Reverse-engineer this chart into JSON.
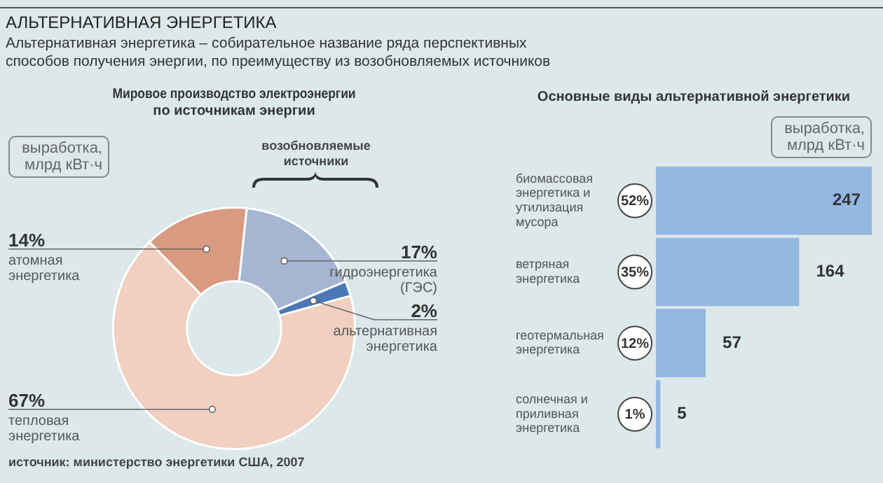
{
  "chart_data": [
    {
      "type": "other",
      "title": "АЛЬТЕРНАТИВНАЯ ЭНЕРГЕТИКА",
      "subtitle": "Альтернативная энергетика – собирательное название ряда перспективных способов получения энергии, по преимуществу из возобновляемых источников"
    },
    {
      "type": "donut",
      "title": "Мировое производство электроэнергии по источникам энергии",
      "categories": [
        "гидроэнергетика (ГЭС)",
        "альтернативная энергетика",
        "тепловая энергетика",
        "атомная энергетика"
      ],
      "values": [
        17,
        2,
        67,
        14
      ],
      "colors": [
        "#a5b5d2",
        "#4a78b8",
        "#f1d0c1",
        "#d99a82"
      ],
      "value_labels": [
        "17%",
        "2%",
        "67%",
        "14%"
      ],
      "legend": false,
      "annotations": [
        "выработка, млрд кВт·ч",
        "возобновляемые источники",
        "источник: министерство энергетики США, 2007"
      ]
    },
    {
      "type": "bar",
      "orientation": "horizontal",
      "title": "Основные виды альтернативной энергетики",
      "categories": [
        "биомассовая энергетика и утилизация мусора",
        "ветряная энергетика",
        "геотермальная энергетика",
        "солнечная и приливная энергетика"
      ],
      "values": [
        247,
        164,
        57,
        5
      ],
      "color": "#94b8e2",
      "xlim": [
        0,
        247
      ],
      "data_labels": true,
      "tick_labels": "y",
      "grid": false,
      "legend": false,
      "annotations": [
        "выработка, млрд кВт·ч",
        "52%",
        "35%",
        "12%",
        "1%"
      ]
    }
  ]
}
